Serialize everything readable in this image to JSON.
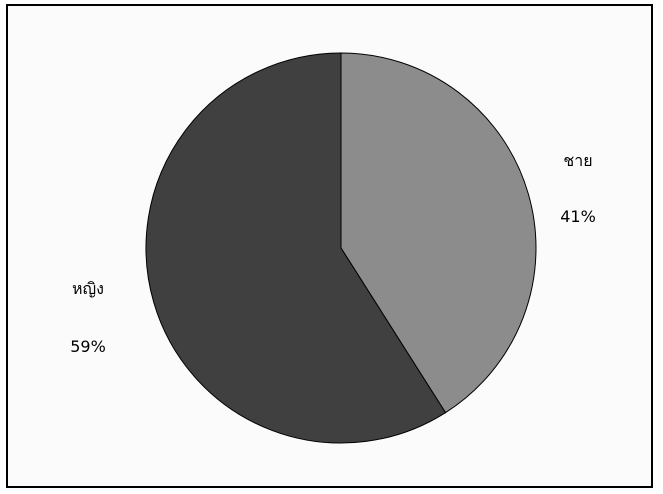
{
  "chart_data": {
    "type": "pie",
    "slices": [
      {
        "label": "ชาย",
        "value": 41,
        "value_label": "41%",
        "color": "#8c8c8c"
      },
      {
        "label": "หญิง",
        "value": 59,
        "value_label": "59%",
        "color": "#404040"
      }
    ],
    "start_angle_deg": 0,
    "direction": "clockwise",
    "legend": "none"
  }
}
